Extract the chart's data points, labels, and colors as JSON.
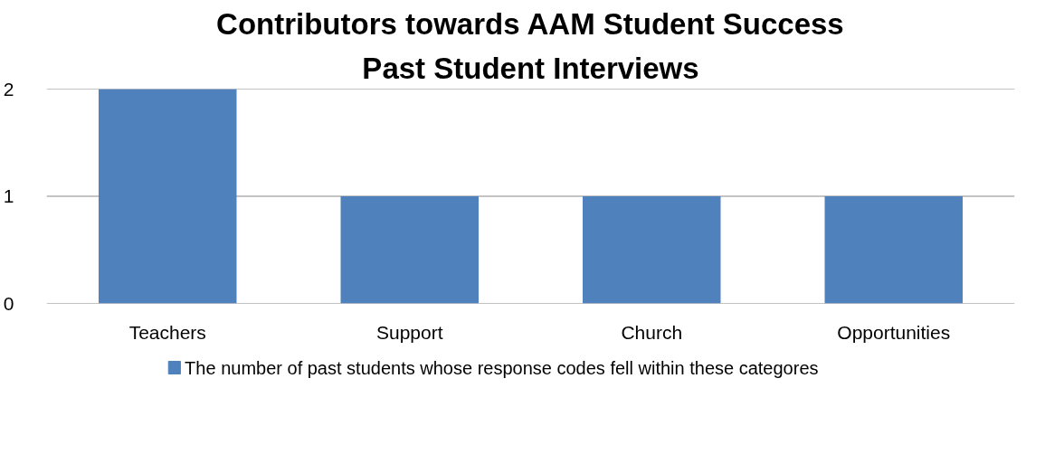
{
  "chart_data": {
    "type": "bar",
    "title": "Contributors towards AAM Student Success",
    "subtitle": "Past Student Interviews",
    "categories": [
      "Teachers",
      "Support",
      "Church",
      "Opportunities"
    ],
    "series": [
      {
        "name": "The number of past students whose response codes fell within these categores",
        "color": "#4f81bd",
        "values": [
          2,
          1,
          1,
          1
        ]
      }
    ],
    "ylim": [
      0,
      2
    ],
    "yticks": [
      0,
      1,
      2
    ],
    "grid": "y",
    "legend": "bottom"
  }
}
